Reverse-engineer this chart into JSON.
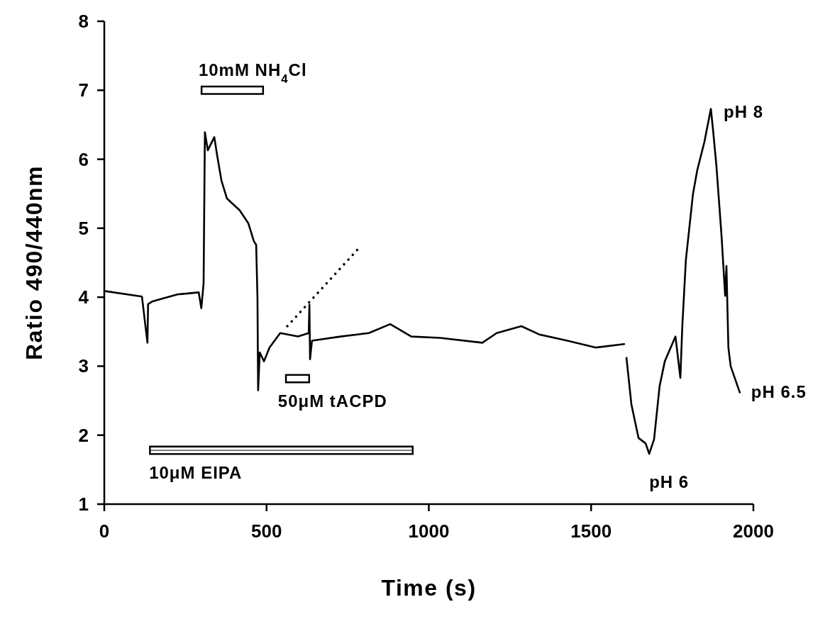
{
  "chart_data": {
    "type": "line",
    "xlabel": "Time (s)",
    "ylabel": "Ratio 490/440nm",
    "xlim": [
      0,
      2000
    ],
    "ylim": [
      1,
      8
    ],
    "xticks": [
      0,
      500,
      1000,
      1500,
      2000
    ],
    "yticks": [
      1,
      2,
      3,
      4,
      5,
      6,
      7,
      8
    ],
    "series": [
      {
        "color": "#000000",
        "x": [
          0,
          116,
          133,
          135,
          149,
          225,
          291,
          299,
          306,
          310,
          319,
          339,
          348,
          361,
          378,
          417,
          444,
          461,
          468,
          472,
          474,
          479,
          492,
          509,
          542,
          597,
          630,
          632,
          634,
          640,
          728,
          815,
          881,
          946,
          1034,
          1165,
          1209,
          1285,
          1340,
          1427,
          1515,
          1602,
          1605,
          1609,
          1624,
          1646,
          1668,
          1679,
          1694,
          1711,
          1727,
          1760,
          1775,
          1781,
          1792,
          1814,
          1827,
          1849,
          1869,
          1875,
          1886,
          1902,
          1913,
          1917,
          1923,
          1930,
          1958
        ],
        "values": [
          4.09,
          4.01,
          3.34,
          3.9,
          3.94,
          4.04,
          4.07,
          3.84,
          4.2,
          6.39,
          6.13,
          6.32,
          6.05,
          5.69,
          5.43,
          5.26,
          5.07,
          4.81,
          4.76,
          3.99,
          2.65,
          3.2,
          3.07,
          3.27,
          3.48,
          3.43,
          3.48,
          3.89,
          3.1,
          3.37,
          3.43,
          3.48,
          3.61,
          3.43,
          3.41,
          3.34,
          3.48,
          3.58,
          3.46,
          3.37,
          3.27,
          3.32,
          null,
          3.12,
          2.45,
          1.96,
          1.88,
          1.73,
          1.94,
          2.71,
          3.07,
          3.43,
          2.83,
          3.58,
          4.54,
          5.5,
          5.84,
          6.25,
          6.73,
          6.46,
          5.91,
          4.88,
          4.02,
          4.45,
          3.27,
          3.0,
          2.62
        ]
      },
      {
        "type": "line",
        "color": "#000000",
        "line_style": "dotted",
        "x": [
          564,
          790
        ],
        "values": [
          3.58,
          4.74
        ]
      },
      {
        "name": "10mM NH$_{4}$Cl",
        "color": "#000000",
        "x": [
          297,
          492
        ],
        "values": [
          7.0,
          7.0
        ]
      },
      {
        "name": "50μM tACPD",
        "color": "#000000",
        "x": [
          557,
          634
        ],
        "values": [
          2.82,
          2.82
        ]
      },
      {
        "name": "10μM EIPA",
        "color": "#000000",
        "x": [
          138,
          953
        ],
        "values": [
          1.78,
          1.78
        ]
      }
    ],
    "annotations": [
      {
        "text": "pH 6",
        "x": 1679,
        "y": 1.73
      },
      {
        "text": "pH 8",
        "x": 1869,
        "y": 6.73
      },
      {
        "text": "pH 6.5",
        "x": 1958,
        "y": 2.62
      }
    ]
  }
}
